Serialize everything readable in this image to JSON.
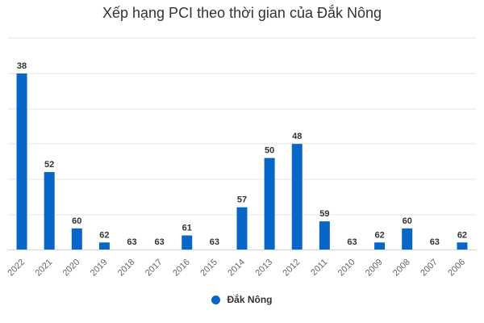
{
  "chart_data": {
    "type": "bar",
    "title": "Xếp hạng PCI theo thời gian của Đắk Nông",
    "categories": [
      "2022",
      "2021",
      "2020",
      "2019",
      "2018",
      "2017",
      "2016",
      "2015",
      "2014",
      "2013",
      "2012",
      "2011",
      "2010",
      "2009",
      "2008",
      "2007",
      "2006"
    ],
    "series": [
      {
        "name": "Đắk Nông",
        "values": [
          38,
          52,
          60,
          62,
          63,
          63,
          61,
          63,
          57,
          50,
          48,
          59,
          63,
          62,
          60,
          63,
          62
        ]
      }
    ],
    "axis_note": "reversed rank scale: rank 63 = baseline, smaller rank = taller bar",
    "ylim": [
      63,
      38
    ],
    "grid": true,
    "legend_position": "bottom-center",
    "bar_color": "#0866c6"
  }
}
